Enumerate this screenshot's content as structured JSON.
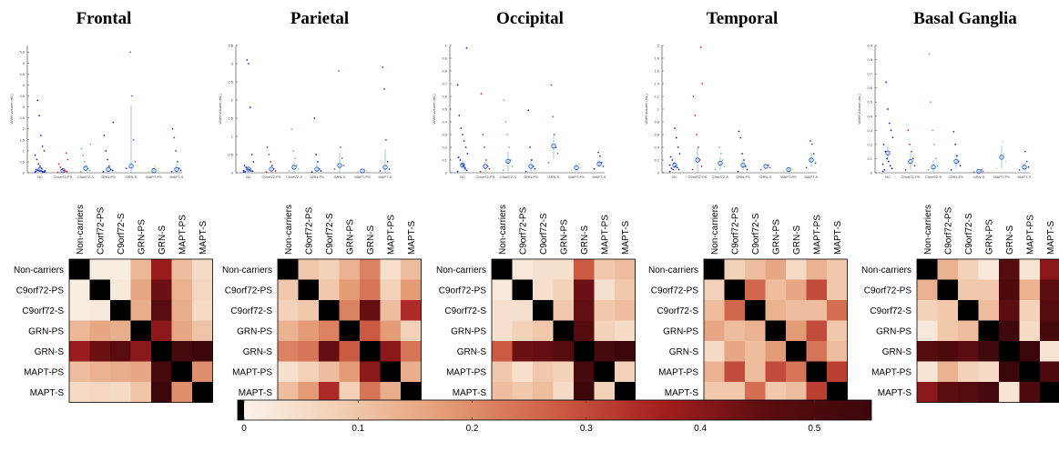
{
  "colors": {
    "NC": "#1f1fd6",
    "C9orf72-PS": "#d92020",
    "C9orf72-S": "#5bd15b",
    "GRN-PS": "#1b2a6b",
    "GRN-S": "#9a3fd0",
    "MAPT-PS": "#c8e06a",
    "MAPT-S": "#1f4fa0",
    "mean_marker": "#1f5bd6",
    "errorbar": "#5aa6d8",
    "colormap": [
      "#fbf5ef",
      "#f2cdb1",
      "#e39a74",
      "#cd5d45",
      "#a61f1f",
      "#5c0d10",
      "#3b070b"
    ]
  },
  "colorbar": {
    "ticks": [
      "0",
      "0.1",
      "0.2",
      "0.3",
      "0.4",
      "0.5"
    ],
    "tick_values": [
      0,
      0.1,
      0.2,
      0.3,
      0.4,
      0.5
    ],
    "range": [
      0,
      0.55
    ]
  },
  "chart_data": [
    {
      "region": "Frontal",
      "scatter": {
        "type": "scatter",
        "ylabel": "WMH volume (mL)",
        "categories": [
          "NC",
          "C9orf72-PS",
          "C9orf72-S",
          "GRN-PS",
          "GRN-S",
          "MAPT-PS",
          "MAPT-S"
        ],
        "yticks": [
          "0",
          "0.5",
          "1",
          "1.5",
          "2",
          "2.5",
          "3",
          "3.5",
          "4",
          "4.5",
          "5",
          "5.5"
        ],
        "ylim": [
          0,
          5.8
        ],
        "means": [
          0.15,
          0.1,
          0.2,
          0.15,
          0.3,
          0.1,
          0.15
        ],
        "points": [
          [
            0.02,
            0.03,
            0.05,
            0.08,
            0.1,
            0.12,
            0.15,
            0.05,
            0.04,
            0.2,
            0.3,
            0.4,
            0.6,
            0.8,
            1.0,
            1.2,
            1.7,
            2.6,
            3.3,
            0.07,
            0.09
          ],
          [
            0.02,
            0.05,
            0.08,
            0.1,
            0.15,
            0.25,
            0.4,
            0.6,
            0.9
          ],
          [
            0.05,
            0.1,
            0.2,
            0.3,
            0.5,
            0.8,
            1.1,
            1.3
          ],
          [
            0.05,
            0.1,
            0.15,
            0.3,
            0.6,
            1.0,
            1.7,
            2.3
          ],
          [
            0.2,
            0.5,
            1.5,
            3.5,
            5.5
          ],
          [
            0.05,
            0.1,
            0.2,
            0.3
          ],
          [
            0.05,
            0.1,
            0.2,
            0.5,
            1.0,
            1.6,
            2.0
          ]
        ],
        "errors": [
          0.1,
          0.08,
          0.15,
          0.2,
          2.8,
          0.1,
          0.25
        ]
      },
      "matrix": [
        [
          0,
          0.02,
          0.02,
          0.13,
          0.38,
          0.12,
          0.06
        ],
        [
          0.02,
          0,
          0.03,
          0.16,
          0.44,
          0.14,
          0.07
        ],
        [
          0.02,
          0.03,
          0,
          0.15,
          0.47,
          0.15,
          0.06
        ],
        [
          0.13,
          0.16,
          0.15,
          0,
          0.4,
          0.16,
          0.11
        ],
        [
          0.38,
          0.44,
          0.47,
          0.4,
          0,
          0.52,
          0.55
        ],
        [
          0.12,
          0.14,
          0.15,
          0.16,
          0.52,
          0,
          0.2
        ],
        [
          0.06,
          0.07,
          0.06,
          0.11,
          0.55,
          0.2,
          0
        ]
      ]
    },
    {
      "region": "Parietal",
      "scatter": {
        "type": "scatter",
        "ylabel": "WMH volume (mL)",
        "categories": [
          "NC",
          "C9orf72-PS",
          "C9orf72-S",
          "GRN-PS",
          "GRN-S",
          "MAPT-PS",
          "MAPT-S"
        ],
        "yticks": [
          "0",
          "0.5",
          "1",
          "1.5",
          "2",
          "2.5",
          "3",
          "3.5"
        ],
        "ylim": [
          0,
          3.5
        ],
        "means": [
          0.1,
          0.1,
          0.15,
          0.1,
          0.2,
          0.05,
          0.15
        ],
        "points": [
          [
            0.02,
            0.04,
            0.05,
            0.08,
            0.1,
            0.15,
            0.2,
            0.3,
            0.5,
            1.8,
            3.0,
            3.1,
            0.03,
            0.06
          ],
          [
            0.02,
            0.05,
            0.1,
            0.2,
            0.3,
            0.5,
            0.7
          ],
          [
            0.05,
            0.1,
            0.2,
            0.4,
            0.6,
            1.2
          ],
          [
            0.02,
            0.05,
            0.1,
            0.3,
            0.5,
            1.5
          ],
          [
            0.1,
            0.2,
            0.4,
            0.7,
            2.8
          ],
          [
            0.03,
            0.05,
            0.08
          ],
          [
            0.05,
            0.1,
            0.3,
            0.9,
            2.3,
            2.9
          ]
        ],
        "errors": [
          0.08,
          0.1,
          0.15,
          0.15,
          0.35,
          0.04,
          0.5
        ]
      },
      "matrix": [
        [
          0,
          0.1,
          0.08,
          0.14,
          0.22,
          0.05,
          0.12
        ],
        [
          0.1,
          0,
          0.1,
          0.18,
          0.24,
          0.08,
          0.18
        ],
        [
          0.08,
          0.1,
          0,
          0.22,
          0.45,
          0.12,
          0.35
        ],
        [
          0.14,
          0.18,
          0.22,
          0,
          0.28,
          0.18,
          0.08
        ],
        [
          0.22,
          0.24,
          0.45,
          0.28,
          0,
          0.4,
          0.24
        ],
        [
          0.05,
          0.08,
          0.12,
          0.18,
          0.4,
          0,
          0.15
        ],
        [
          0.12,
          0.18,
          0.35,
          0.08,
          0.24,
          0.15,
          0
        ]
      ]
    },
    {
      "region": "Occipital",
      "scatter": {
        "type": "scatter",
        "ylabel": "WMH volume (mL)",
        "categories": [
          "NC",
          "C9orf72-PS",
          "C9orf72-S",
          "GRN-PS",
          "GRN-S",
          "MAPT-PS",
          "MAPT-S"
        ],
        "yticks": [
          "0",
          "0.1",
          "0.2",
          "0.3",
          "0.4",
          "0.5",
          "0.6",
          "0.7",
          "0.8",
          "0.9",
          "1"
        ],
        "ylim": [
          0,
          1.0
        ],
        "means": [
          0.06,
          0.05,
          0.09,
          0.05,
          0.21,
          0.04,
          0.07
        ],
        "points": [
          [
            0.01,
            0.02,
            0.03,
            0.05,
            0.07,
            0.1,
            0.12,
            0.15,
            0.2,
            0.25,
            0.3,
            0.35,
            0.45,
            0.69,
            0.98,
            0.04,
            0.06
          ],
          [
            0.01,
            0.03,
            0.05,
            0.1,
            0.2,
            0.3,
            0.62
          ],
          [
            0.02,
            0.05,
            0.1,
            0.2,
            0.3,
            0.4,
            0.57
          ],
          [
            0.01,
            0.03,
            0.05,
            0.1,
            0.2,
            0.49
          ],
          [
            0.08,
            0.15,
            0.2,
            0.3,
            0.44,
            0.69
          ],
          [
            0.02,
            0.04,
            0.07
          ],
          [
            0.03,
            0.05,
            0.08,
            0.13,
            0.16
          ]
        ],
        "errors": [
          0.04,
          0.04,
          0.08,
          0.06,
          0.1,
          0.03,
          0.03
        ]
      },
      "matrix": [
        [
          0,
          0.03,
          0.05,
          0.05,
          0.28,
          0.1,
          0.12
        ],
        [
          0.03,
          0,
          0.05,
          0.08,
          0.44,
          0.05,
          0.1
        ],
        [
          0.05,
          0.05,
          0,
          0.1,
          0.45,
          0.1,
          0.12
        ],
        [
          0.05,
          0.08,
          0.1,
          0,
          0.48,
          0.08,
          0.06
        ],
        [
          0.28,
          0.44,
          0.45,
          0.48,
          0,
          0.52,
          0.55
        ],
        [
          0.1,
          0.05,
          0.1,
          0.08,
          0.52,
          0,
          0.08
        ],
        [
          0.12,
          0.1,
          0.12,
          0.06,
          0.55,
          0.08,
          0
        ]
      ]
    },
    {
      "region": "Temporal",
      "scatter": {
        "type": "scatter",
        "ylabel": "WMH volume (mL)",
        "categories": [
          "NC",
          "C9orf72-PS",
          "C9orf72-S",
          "GRN-PS",
          "GRN-S",
          "MAPT-PS",
          "MAPT-S"
        ],
        "yticks": [
          "0",
          "0.2",
          "0.4",
          "0.6",
          "0.8",
          "1",
          "1.2",
          "1.4",
          "1.6",
          "1.8",
          "2"
        ],
        "ylim": [
          0,
          2.0
        ],
        "means": [
          0.12,
          0.2,
          0.15,
          0.12,
          0.1,
          0.05,
          0.2
        ],
        "points": [
          [
            0.02,
            0.05,
            0.08,
            0.1,
            0.15,
            0.2,
            0.25,
            0.3,
            0.4,
            0.55,
            0.7,
            0.05,
            0.07,
            0.12
          ],
          [
            0.05,
            0.1,
            0.2,
            0.4,
            0.6,
            0.9,
            1.2,
            1.4,
            1.97
          ],
          [
            0.05,
            0.1,
            0.2,
            0.3,
            0.4
          ],
          [
            0.02,
            0.05,
            0.1,
            0.2,
            0.3,
            0.55,
            0.65
          ],
          [
            0.05,
            0.08,
            0.12
          ],
          [
            0.02,
            0.05,
            0.08
          ],
          [
            0.08,
            0.15,
            0.3,
            0.45,
            0.5
          ]
        ],
        "errors": [
          0.05,
          0.2,
          0.1,
          0.08,
          0.04,
          0.03,
          0.12
        ]
      },
      "matrix": [
        [
          0,
          0.08,
          0.12,
          0.16,
          0.06,
          0.14,
          0.1
        ],
        [
          0.08,
          0,
          0.26,
          0.12,
          0.16,
          0.3,
          0.1
        ],
        [
          0.12,
          0.26,
          0,
          0.14,
          0.12,
          0.12,
          0.25
        ],
        [
          0.16,
          0.12,
          0.14,
          0,
          0.18,
          0.3,
          0.1
        ],
        [
          0.06,
          0.16,
          0.12,
          0.18,
          0,
          0.24,
          0.12
        ],
        [
          0.14,
          0.3,
          0.12,
          0.3,
          0.24,
          0,
          0.32
        ],
        [
          0.1,
          0.1,
          0.25,
          0.1,
          0.12,
          0.32,
          0
        ]
      ]
    },
    {
      "region": "Basal Ganglia",
      "scatter": {
        "type": "scatter",
        "ylabel": "WMH volume (mL)",
        "categories": [
          "NC",
          "C9orf72-PS",
          "C9orf72-S",
          "GRN-PS",
          "GRN-S",
          "MAPT-PS",
          "MAPT-S"
        ],
        "yticks": [
          "0",
          "0.1",
          "0.2",
          "0.3",
          "0.4",
          "0.5",
          "0.6",
          "0.7",
          "0.8",
          "0.9"
        ],
        "ylim": [
          0,
          0.9
        ],
        "means": [
          0.14,
          0.08,
          0.04,
          0.08,
          0.01,
          0.11,
          0.04
        ],
        "points": [
          [
            0.01,
            0.03,
            0.05,
            0.08,
            0.1,
            0.15,
            0.2,
            0.25,
            0.3,
            0.35,
            0.45,
            0.64,
            0.02,
            0.06
          ],
          [
            0.02,
            0.05,
            0.1,
            0.15,
            0.2,
            0.3
          ],
          [
            0.02,
            0.05,
            0.1,
            0.2,
            0.3,
            0.5,
            0.84
          ],
          [
            0.02,
            0.05,
            0.08,
            0.12,
            0.2,
            0.29
          ],
          [
            0.005,
            0.01,
            0.02
          ],
          [
            0.03,
            0.08,
            0.13,
            0.22
          ],
          [
            0.02,
            0.04,
            0.08,
            0.15
          ]
        ],
        "errors": [
          0.05,
          0.06,
          0.05,
          0.05,
          0.01,
          0.08,
          0.03
        ]
      },
      "matrix": [
        [
          0,
          0.14,
          0.08,
          0.03,
          0.48,
          0.04,
          0.4
        ],
        [
          0.14,
          0,
          0.1,
          0.1,
          0.5,
          0.14,
          0.46
        ],
        [
          0.08,
          0.1,
          0,
          0.12,
          0.46,
          0.08,
          0.48
        ],
        [
          0.03,
          0.1,
          0.12,
          0,
          0.54,
          0.06,
          0.52
        ],
        [
          0.48,
          0.5,
          0.46,
          0.54,
          0,
          0.55,
          0.04
        ],
        [
          0.04,
          0.14,
          0.08,
          0.06,
          0.55,
          0,
          0.5
        ],
        [
          0.4,
          0.46,
          0.48,
          0.52,
          0.04,
          0.5,
          0
        ]
      ]
    }
  ],
  "matrix_labels": [
    "Non-carriers",
    "C9orf72-PS",
    "C9orf72-S",
    "GRN-PS",
    "GRN-S",
    "MAPT-PS",
    "MAPT-S"
  ]
}
